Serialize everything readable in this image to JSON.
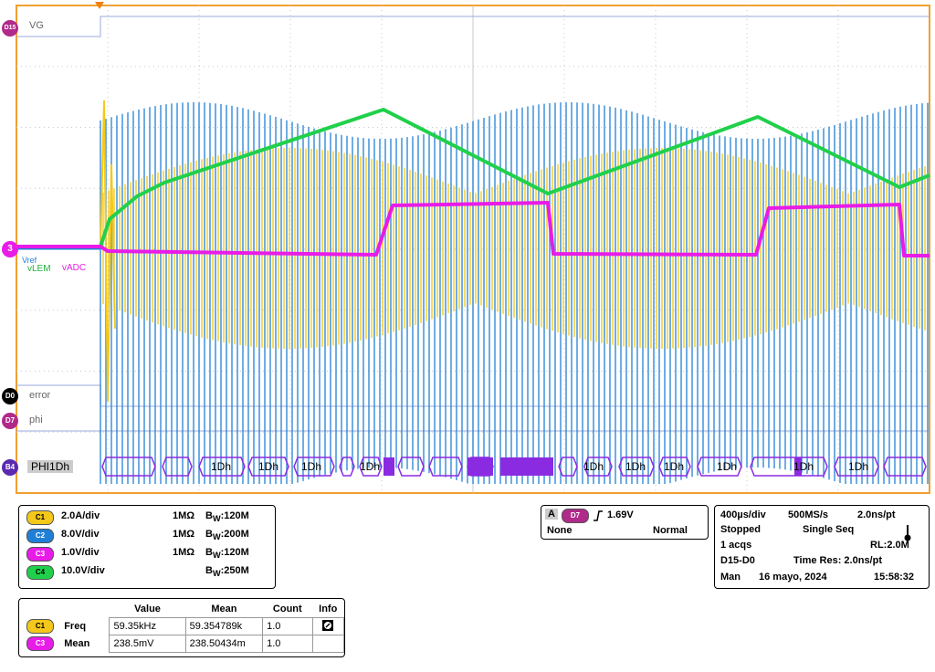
{
  "colors": {
    "c1": "#f4c81b",
    "c2": "#1f7fd6",
    "c3": "#e81be8",
    "c4": "#20d04a",
    "digital": "#8a2be2",
    "grid": "#c8c8c8",
    "frame": "#f0a030"
  },
  "markers": {
    "d15": "D15",
    "ch3": "3",
    "d0": "D0",
    "d7": "D7",
    "b4": "B4",
    "trigger_icon": "trigger-position-icon"
  },
  "waveform_labels": {
    "vg": "VG",
    "vref": "Vref",
    "vlem": "vLEM",
    "vadc": "vADC",
    "error": "error",
    "phi": "phi",
    "bus_name": "PHI",
    "bus_first": "1Dh"
  },
  "bus_values": [
    "1Dh",
    "1Dh",
    "1Dh",
    "1Dh",
    "1Dh",
    "1Dh",
    "1Dh",
    "1Dh",
    "1Dh",
    "1Dh"
  ],
  "channels": [
    {
      "pill": "C1",
      "scale": "2.0A/div",
      "imp": "1MΩ",
      "bw_b": "B",
      "bw_w": "W",
      "bw_val": ":120M"
    },
    {
      "pill": "C2",
      "scale": "8.0V/div",
      "imp": "1MΩ",
      "bw_b": "B",
      "bw_w": "W",
      "bw_val": ":200M"
    },
    {
      "pill": "C3",
      "scale": "1.0V/div",
      "imp": "1MΩ",
      "bw_b": "B",
      "bw_w": "W",
      "bw_val": ":120M"
    },
    {
      "pill": "C4",
      "scale": "10.0V/div",
      "imp": "",
      "bw_b": "B",
      "bw_w": "W",
      "bw_val": ":250M"
    }
  ],
  "trigger": {
    "a": "A",
    "source": "D7",
    "level": "1.69V",
    "coupling": "None",
    "mode": "Normal"
  },
  "acquisition": {
    "timebase": "400µs/div",
    "rate": "500MS/s",
    "resolution": "2.0ns/pt",
    "state": "Stopped",
    "seq": "Single Seq",
    "acqs": "1 acqs",
    "rl": "RL:2.0M",
    "digital": "D15-D0",
    "timeres": "Time Res: 2.0ns/pt",
    "man": "Man",
    "date": "16 mayo, 2024",
    "time": "15:58:32",
    "thermometer_icon": "thermometer-icon"
  },
  "measurements": {
    "headers": [
      "Value",
      "Mean",
      "Count",
      "Info"
    ],
    "rows": [
      {
        "pill": "C1",
        "name": "Freq",
        "value": "59.35kHz",
        "mean": "59.354789k",
        "count": "1.0",
        "info_icon": "info-icon"
      },
      {
        "pill": "C3",
        "name": "Mean",
        "value": "238.5mV",
        "mean": "238.50434m",
        "count": "1.0"
      }
    ]
  }
}
